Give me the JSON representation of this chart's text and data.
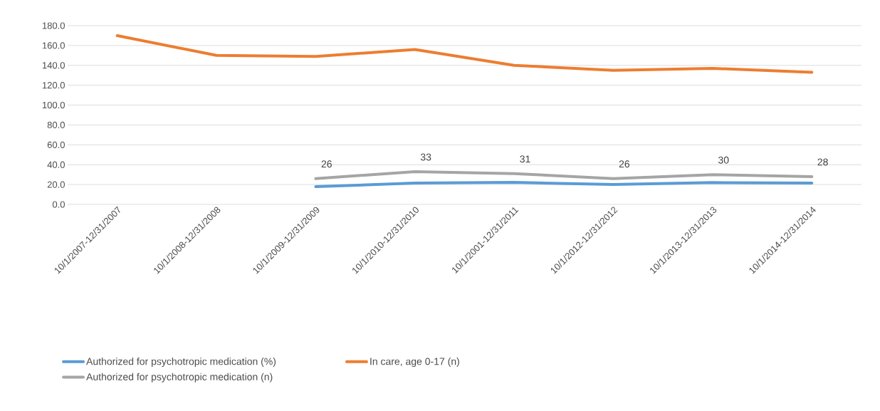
{
  "chart_data": {
    "type": "line",
    "categories": [
      "10/1/2007-12/31/2007",
      "10/1/2008-12/31/2008",
      "10/1/2009-12/31/2009",
      "10/1/2010-12/31/2010",
      "10/1/2001-12/31/2011",
      "10/1/2012-12/31/2012",
      "10/1/2013-12/31/2013",
      "10/1/2014-12/31/2014"
    ],
    "series": [
      {
        "name": "Authorized for psychotropic medication (%)",
        "color": "#5b9bd5",
        "values": [
          null,
          null,
          17.9,
          21.5,
          22.2,
          20.0,
          22.0,
          21.5
        ]
      },
      {
        "name": "In care, age 0-17 (n)",
        "color": "#ed7d31",
        "values": [
          170,
          150,
          149,
          156,
          140,
          135,
          137,
          133
        ]
      },
      {
        "name": "Authorized for psychotropic medication (n)",
        "color": "#a5a5a5",
        "values": [
          null,
          null,
          26,
          33,
          31,
          26,
          30,
          28
        ],
        "value_labels": [
          null,
          null,
          "26",
          "33",
          "31",
          "26",
          "30",
          "28"
        ]
      }
    ],
    "ylim": [
      0,
      180
    ],
    "yticks": [
      {
        "value": 0,
        "label": "0.0"
      },
      {
        "value": 20,
        "label": "20.0"
      },
      {
        "value": 40,
        "label": "40.0"
      },
      {
        "value": 60,
        "label": "60.0"
      },
      {
        "value": 80,
        "label": "80.0"
      },
      {
        "value": 100,
        "label": "100.0"
      },
      {
        "value": 120,
        "label": "120.0"
      },
      {
        "value": 140,
        "label": "140.0"
      },
      {
        "value": 160,
        "label": "160.0"
      },
      {
        "value": 180,
        "label": "180.0"
      }
    ],
    "grid": "y",
    "legend": "bottom",
    "marker": "none",
    "line_style": "solid"
  }
}
